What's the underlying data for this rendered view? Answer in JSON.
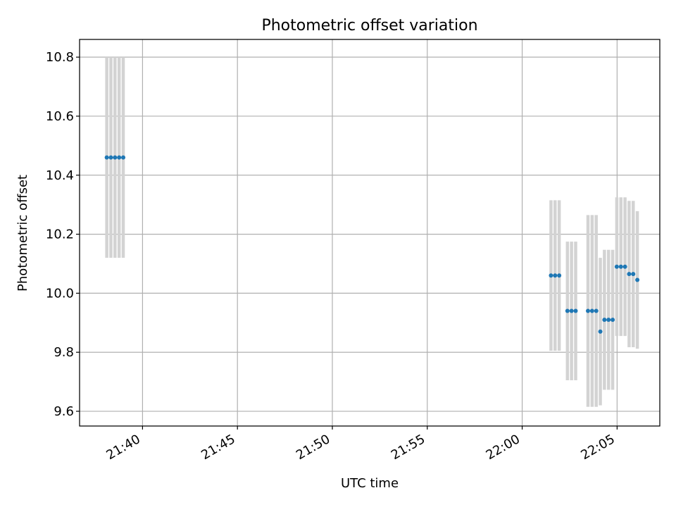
{
  "chart_data": {
    "type": "scatter",
    "title": "Photometric offset variation",
    "xlabel": "UTC time",
    "ylabel": "Photometric offset",
    "grid": true,
    "xlim": [
      "21:36:41",
      "22:07:15"
    ],
    "ylim": [
      9.55,
      10.86
    ],
    "x_ticks": [
      "21:40",
      "21:45",
      "21:50",
      "21:55",
      "22:00",
      "22:05"
    ],
    "y_ticks": [
      9.6,
      9.8,
      10.0,
      10.2,
      10.4,
      10.6,
      10.8
    ],
    "point_color": "#1f77b4",
    "error_bar_color": "#d3d3d3",
    "series": [
      {
        "x": [
          "21:38:07",
          "21:38:20",
          "21:38:33",
          "21:38:46",
          "21:38:59",
          "22:01:31",
          "22:01:44",
          "22:01:57",
          "22:02:23",
          "22:02:36",
          "22:02:49",
          "22:03:28",
          "22:03:41",
          "22:03:54",
          "22:04:07",
          "22:04:20",
          "22:04:33",
          "22:04:46",
          "22:04:59",
          "22:05:12",
          "22:05:25",
          "22:05:38",
          "22:05:51",
          "22:06:04"
        ],
        "y": [
          10.46,
          10.46,
          10.46,
          10.46,
          10.46,
          10.06,
          10.06,
          10.06,
          9.94,
          9.94,
          9.94,
          9.94,
          9.94,
          9.94,
          9.87,
          9.91,
          9.91,
          9.91,
          10.09,
          10.09,
          10.09,
          10.065,
          10.065,
          10.045
        ],
        "yerr": [
          0.34,
          0.34,
          0.34,
          0.34,
          0.34,
          0.255,
          0.255,
          0.255,
          0.235,
          0.235,
          0.235,
          0.325,
          0.325,
          0.325,
          0.25,
          0.237,
          0.237,
          0.237,
          0.235,
          0.235,
          0.235,
          0.248,
          0.248,
          0.233
        ]
      }
    ]
  }
}
